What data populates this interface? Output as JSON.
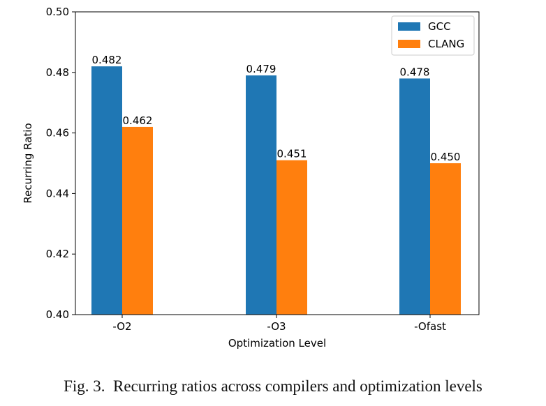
{
  "chart_data": {
    "type": "bar",
    "categories": [
      "-O2",
      "-O3",
      "-Ofast"
    ],
    "series": [
      {
        "name": "GCC",
        "values": [
          0.482,
          0.479,
          0.478
        ],
        "labels": [
          "0.482",
          "0.479",
          "0.478"
        ],
        "color": "#1f77b4"
      },
      {
        "name": "CLANG",
        "values": [
          0.462,
          0.451,
          0.45
        ],
        "labels": [
          "0.462",
          "0.451",
          "0.450"
        ],
        "color": "#ff7f0e"
      }
    ],
    "xlabel": "Optimization Level",
    "ylabel": "Recurring Ratio",
    "ylim": [
      0.4,
      0.5
    ],
    "yticks": [
      0.4,
      0.42,
      0.44,
      0.46,
      0.48,
      0.5
    ],
    "ytick_labels": [
      "0.40",
      "0.42",
      "0.44",
      "0.46",
      "0.48",
      "0.50"
    ],
    "grid": false,
    "legend_position": "top-right"
  },
  "caption": "Fig. 3.  Recurring ratios across compilers and optimization levels"
}
